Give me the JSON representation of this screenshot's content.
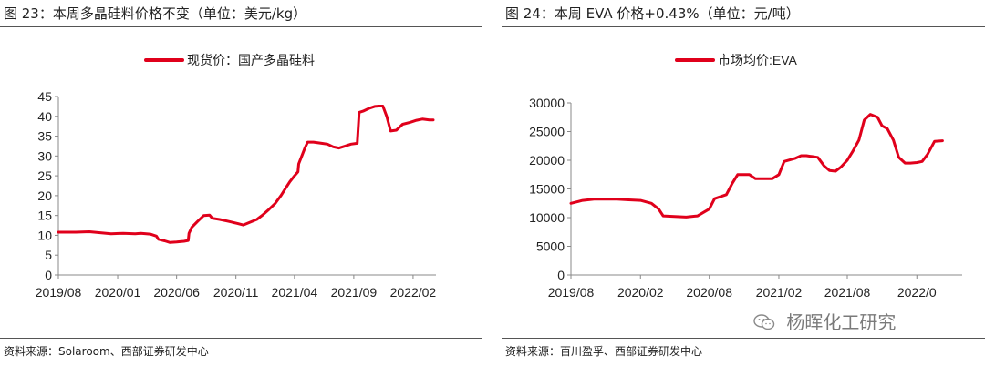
{
  "charts": {
    "left": {
      "fig_title": "图 23：本周多晶硅料价格不变（单位：美元/kg）",
      "source": "资料来源：Solaroom、西部证券研发中心"
    },
    "right": {
      "fig_title": "图 24：本周 EVA 价格+0.43%（单位：元/吨）",
      "source": "资料来源：百川盈孚、西部证券研发中心"
    }
  },
  "watermark": {
    "text": "杨晖化工研究",
    "icon": "wechat-icon"
  },
  "colors": {
    "series": "#e0001b",
    "axis": "#888888",
    "text": "#222222"
  },
  "chart_data": [
    {
      "type": "line",
      "title": "",
      "xlabel": "",
      "ylabel": "",
      "ylim": [
        0,
        45
      ],
      "yticks": [
        0,
        5,
        10,
        15,
        20,
        25,
        30,
        35,
        40,
        45
      ],
      "xlim": [
        "2019-08-01",
        "2022-04-01"
      ],
      "xticks": [
        {
          "label": "2019/08",
          "date": "2019-08-01"
        },
        {
          "label": "2020/01",
          "date": "2020-01-01"
        },
        {
          "label": "2020/06",
          "date": "2020-06-01"
        },
        {
          "label": "2020/11",
          "date": "2020-11-01"
        },
        {
          "label": "2021/04",
          "date": "2021-04-01"
        },
        {
          "label": "2021/09",
          "date": "2021-09-01"
        },
        {
          "label": "2022/02",
          "date": "2022-02-01"
        }
      ],
      "grid": false,
      "legend": "top-center",
      "series": [
        {
          "name": "现货价：国产多晶硅料",
          "color": "#e0001b",
          "points": [
            [
              "2019-08-01",
              10.8
            ],
            [
              "2019-09-15",
              10.8
            ],
            [
              "2019-10-20",
              10.9
            ],
            [
              "2019-11-20",
              10.6
            ],
            [
              "2019-12-15",
              10.4
            ],
            [
              "2020-01-15",
              10.5
            ],
            [
              "2020-02-15",
              10.4
            ],
            [
              "2020-03-01",
              10.5
            ],
            [
              "2020-03-25",
              10.3
            ],
            [
              "2020-04-10",
              9.8
            ],
            [
              "2020-04-15",
              9.0
            ],
            [
              "2020-05-01",
              8.6
            ],
            [
              "2020-05-15",
              8.2
            ],
            [
              "2020-06-01",
              8.3
            ],
            [
              "2020-06-20",
              8.5
            ],
            [
              "2020-07-01",
              8.7
            ],
            [
              "2020-07-03",
              10.5
            ],
            [
              "2020-07-10",
              12.0
            ],
            [
              "2020-07-25",
              13.5
            ],
            [
              "2020-08-10",
              15.0
            ],
            [
              "2020-08-25",
              15.1
            ],
            [
              "2020-09-01",
              14.3
            ],
            [
              "2020-09-20",
              14.0
            ],
            [
              "2020-10-10",
              13.6
            ],
            [
              "2020-11-05",
              13.0
            ],
            [
              "2020-11-20",
              12.6
            ],
            [
              "2020-12-05",
              13.2
            ],
            [
              "2020-12-25",
              14.0
            ],
            [
              "2021-01-10",
              15.2
            ],
            [
              "2021-01-25",
              16.5
            ],
            [
              "2021-02-10",
              18.0
            ],
            [
              "2021-02-25",
              20.0
            ],
            [
              "2021-03-10",
              22.0
            ],
            [
              "2021-03-20",
              23.5
            ],
            [
              "2021-04-01",
              25.0
            ],
            [
              "2021-04-10",
              26.0
            ],
            [
              "2021-04-12",
              28.0
            ],
            [
              "2021-04-20",
              30.0
            ],
            [
              "2021-04-28",
              32.0
            ],
            [
              "2021-05-05",
              33.5
            ],
            [
              "2021-05-20",
              33.5
            ],
            [
              "2021-06-10",
              33.2
            ],
            [
              "2021-06-25",
              33.0
            ],
            [
              "2021-07-10",
              32.3
            ],
            [
              "2021-07-25",
              32.0
            ],
            [
              "2021-08-10",
              32.5
            ],
            [
              "2021-08-25",
              33.0
            ],
            [
              "2021-09-10",
              33.2
            ],
            [
              "2021-09-15",
              41.0
            ],
            [
              "2021-09-25",
              41.3
            ],
            [
              "2021-10-10",
              42.0
            ],
            [
              "2021-10-25",
              42.5
            ],
            [
              "2021-11-05",
              42.6
            ],
            [
              "2021-11-15",
              42.6
            ],
            [
              "2021-11-25",
              40.0
            ],
            [
              "2021-12-05",
              36.3
            ],
            [
              "2021-12-20",
              36.5
            ],
            [
              "2022-01-05",
              38.0
            ],
            [
              "2022-01-25",
              38.5
            ],
            [
              "2022-02-10",
              39.0
            ],
            [
              "2022-02-25",
              39.3
            ],
            [
              "2022-03-15",
              39.1
            ],
            [
              "2022-03-25",
              39.1
            ]
          ]
        }
      ]
    },
    {
      "type": "line",
      "title": "",
      "xlabel": "",
      "ylabel": "",
      "ylim": [
        0,
        30000
      ],
      "yticks": [
        0,
        5000,
        10000,
        15000,
        20000,
        25000,
        30000
      ],
      "xlim": [
        "2019-08-01",
        "2022-06-01"
      ],
      "xticks": [
        {
          "label": "2019/08",
          "date": "2019-08-01"
        },
        {
          "label": "2020/02",
          "date": "2020-02-01"
        },
        {
          "label": "2020/08",
          "date": "2020-08-01"
        },
        {
          "label": "2021/02",
          "date": "2021-02-01"
        },
        {
          "label": "2021/08",
          "date": "2021-08-01"
        },
        {
          "label": "2022/0",
          "date": "2022-02-01"
        }
      ],
      "grid": false,
      "legend": "top-center",
      "series": [
        {
          "name": "市场均价:EVA",
          "color": "#e0001b",
          "points": [
            [
              "2019-08-01",
              12500
            ],
            [
              "2019-09-01",
              13000
            ],
            [
              "2019-10-01",
              13200
            ],
            [
              "2019-11-01",
              13200
            ],
            [
              "2019-12-01",
              13200
            ],
            [
              "2020-01-01",
              13100
            ],
            [
              "2020-02-01",
              13000
            ],
            [
              "2020-03-01",
              12500
            ],
            [
              "2020-03-20",
              11500
            ],
            [
              "2020-04-01",
              10300
            ],
            [
              "2020-05-01",
              10200
            ],
            [
              "2020-06-01",
              10100
            ],
            [
              "2020-07-01",
              10300
            ],
            [
              "2020-08-01",
              11500
            ],
            [
              "2020-08-15",
              13300
            ],
            [
              "2020-09-15",
              14000
            ],
            [
              "2020-10-01",
              16000
            ],
            [
              "2020-10-15",
              17500
            ],
            [
              "2020-11-15",
              17500
            ],
            [
              "2020-12-01",
              16800
            ],
            [
              "2021-01-15",
              16800
            ],
            [
              "2021-02-01",
              17500
            ],
            [
              "2021-02-15",
              19800
            ],
            [
              "2021-03-15",
              20300
            ],
            [
              "2021-04-01",
              20800
            ],
            [
              "2021-04-15",
              20800
            ],
            [
              "2021-05-15",
              20500
            ],
            [
              "2021-06-01",
              19000
            ],
            [
              "2021-06-15",
              18200
            ],
            [
              "2021-07-01",
              18100
            ],
            [
              "2021-07-15",
              18800
            ],
            [
              "2021-08-01",
              20000
            ],
            [
              "2021-08-15",
              21500
            ],
            [
              "2021-09-01",
              23500
            ],
            [
              "2021-09-15",
              27000
            ],
            [
              "2021-10-01",
              28000
            ],
            [
              "2021-10-20",
              27500
            ],
            [
              "2021-11-01",
              26000
            ],
            [
              "2021-11-15",
              25500
            ],
            [
              "2021-12-01",
              23500
            ],
            [
              "2021-12-15",
              20500
            ],
            [
              "2022-01-01",
              19500
            ],
            [
              "2022-01-15",
              19500
            ],
            [
              "2022-02-01",
              19600
            ],
            [
              "2022-02-15",
              19800
            ],
            [
              "2022-03-01",
              21000
            ],
            [
              "2022-03-20",
              23300
            ],
            [
              "2022-04-10",
              23400
            ]
          ]
        }
      ]
    }
  ]
}
